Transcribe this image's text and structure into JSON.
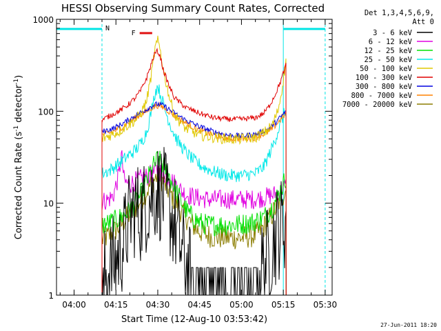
{
  "chart_data": {
    "type": "line",
    "title": "HESSI Observing Summary Count Rates, Corrected",
    "xlabel": "Start Time (12-Aug-10 03:53:42)",
    "ylabel": "Corrected Count Rate (s⁻¹ detector⁻¹)",
    "ylabel_base": "Corrected Count Rate (s",
    "ylabel_mid": " detector",
    "ylabel_end": ")",
    "ylabel_sup": "-1",
    "yscale": "log",
    "ylim": [
      1,
      1000
    ],
    "xlim": [
      "03:53:42",
      "05:32:30"
    ],
    "x_ticks": [
      "04:00",
      "04:15",
      "04:30",
      "04:45",
      "05:00",
      "05:15",
      "05:30"
    ],
    "y_ticks": [
      "1",
      "10",
      "100",
      "1000"
    ],
    "legend_header": [
      "Det 1,3,4,5,6,9,",
      "Att 0"
    ],
    "legend_placement": "right",
    "footer_date": "27-Jun-2011 18:20",
    "markers": {
      "night_label": "N",
      "flare_label": "F"
    },
    "marker_colors": {
      "night": "#00e5e5",
      "flare": "#e01010"
    },
    "night_intervals": [
      [
        "03:53:42",
        "04:10:00"
      ],
      [
        "05:15:00",
        "05:30:00"
      ]
    ],
    "flare_interval": [
      "04:23:30",
      "04:28:00"
    ],
    "series": [
      {
        "name": "3 - 6 keV",
        "color": "#000000",
        "x": [
          "04:10",
          "04:12",
          "04:15",
          "04:18",
          "04:20",
          "04:22",
          "04:24",
          "04:26",
          "04:28",
          "04:30",
          "04:32",
          "04:34",
          "04:36",
          "04:38",
          "04:40",
          "04:42",
          "04:44",
          "04:46",
          "04:48",
          "04:50",
          "04:55",
          "05:00",
          "05:03",
          "05:06",
          "05:08",
          "05:10",
          "05:12",
          "05:14",
          "05:16"
        ],
        "y": [
          1.4,
          1.8,
          2.4,
          4.0,
          7.0,
          9.0,
          7.5,
          10.0,
          12.5,
          14.0,
          12.0,
          9.0,
          6.0,
          3.5,
          2.2,
          1.5,
          1.2,
          1.0,
          1.0,
          1.0,
          1.0,
          1.0,
          1.3,
          1.6,
          2.2,
          3.0,
          4.2,
          5.5,
          6.5
        ]
      },
      {
        "name": "6 - 12 keV",
        "color": "#e000e0",
        "x": [
          "04:10",
          "04:12",
          "04:14",
          "04:16",
          "04:17",
          "04:18",
          "04:20",
          "04:22",
          "04:24",
          "04:26",
          "04:28",
          "04:30",
          "04:32",
          "04:34",
          "04:36",
          "04:38",
          "04:40",
          "04:44",
          "04:48",
          "04:52",
          "04:56",
          "05:00",
          "05:04",
          "05:08",
          "05:12",
          "05:14",
          "05:16"
        ],
        "y": [
          10.5,
          10.8,
          12.0,
          20.0,
          34.0,
          17.0,
          16.0,
          17.5,
          18.5,
          19.5,
          21.0,
          23.0,
          21.0,
          19.0,
          16.5,
          14.0,
          12.5,
          11.5,
          11.0,
          11.0,
          11.0,
          11.0,
          11.0,
          11.5,
          12.5,
          14.0,
          15.5
        ]
      },
      {
        "name": "12 - 25 keV",
        "color": "#00e000",
        "x": [
          "04:10",
          "04:12",
          "04:15",
          "04:18",
          "04:20",
          "04:22",
          "04:24",
          "04:26",
          "04:28",
          "04:30",
          "04:32",
          "04:34",
          "04:36",
          "04:38",
          "04:40",
          "04:42",
          "04:44",
          "04:46",
          "04:48",
          "04:52",
          "04:56",
          "05:00",
          "05:04",
          "05:08",
          "05:11",
          "05:13",
          "05:15",
          "05:16"
        ],
        "y": [
          5.8,
          6.0,
          6.5,
          7.5,
          8.5,
          10.0,
          12.5,
          17.0,
          24.0,
          30.0,
          26.0,
          20.0,
          15.0,
          11.0,
          8.5,
          7.2,
          6.5,
          6.0,
          5.8,
          5.8,
          5.8,
          5.9,
          6.2,
          7.0,
          9.0,
          12.0,
          16.0,
          20.0
        ]
      },
      {
        "name": "25 - 50 keV",
        "color": "#00e8e8",
        "x": [
          "04:10",
          "04:13",
          "04:16",
          "04:19",
          "04:22",
          "04:24",
          "04:26",
          "04:28",
          "04:29",
          "04:30",
          "04:31",
          "04:33",
          "04:35",
          "04:37",
          "04:40",
          "04:43",
          "04:46",
          "04:50",
          "04:55",
          "05:00",
          "05:05",
          "05:08",
          "05:11",
          "05:13",
          "05:15",
          "05:16"
        ],
        "y": [
          21,
          23,
          27,
          32,
          38,
          45,
          60,
          110,
          160,
          190,
          150,
          95,
          65,
          48,
          36,
          29,
          25,
          22,
          20,
          20,
          21,
          25,
          40,
          60,
          90,
          100
        ]
      },
      {
        "name": "50 - 100 keV",
        "color": "#e0c800",
        "x": [
          "04:10",
          "04:13",
          "04:16",
          "04:19",
          "04:22",
          "04:24",
          "04:26",
          "04:28",
          "04:29",
          "04:30",
          "04:31",
          "04:32",
          "04:34",
          "04:36",
          "04:40",
          "04:45",
          "04:50",
          "04:55",
          "05:00",
          "05:05",
          "05:08",
          "05:11",
          "05:13",
          "05:14",
          "05:15",
          "05:16"
        ],
        "y": [
          50,
          55,
          60,
          70,
          80,
          95,
          130,
          280,
          480,
          580,
          450,
          280,
          150,
          90,
          65,
          55,
          52,
          50,
          50,
          52,
          58,
          70,
          100,
          140,
          220,
          350
        ]
      },
      {
        "name": "100 - 300 keV",
        "color": "#e00000",
        "x": [
          "04:10",
          "04:13",
          "04:16",
          "04:19",
          "04:22",
          "04:24",
          "04:26",
          "04:28",
          "04:29",
          "04:30",
          "04:31",
          "04:32",
          "04:34",
          "04:36",
          "04:40",
          "04:45",
          "04:50",
          "04:55",
          "05:00",
          "05:05",
          "05:08",
          "05:10",
          "05:12",
          "05:14",
          "05:16"
        ],
        "y": [
          80,
          90,
          100,
          115,
          140,
          170,
          230,
          350,
          430,
          450,
          380,
          280,
          190,
          140,
          110,
          95,
          85,
          82,
          82,
          85,
          95,
          115,
          150,
          210,
          320
        ]
      },
      {
        "name": "300 - 800 keV",
        "color": "#0000e0",
        "x": [
          "04:10",
          "04:14",
          "04:18",
          "04:22",
          "04:26",
          "04:28",
          "04:30",
          "04:32",
          "04:34",
          "04:36",
          "04:40",
          "04:45",
          "04:50",
          "04:55",
          "05:00",
          "05:05",
          "05:10",
          "05:13",
          "05:16"
        ],
        "y": [
          60,
          65,
          75,
          90,
          105,
          115,
          120,
          115,
          105,
          95,
          80,
          68,
          60,
          55,
          54,
          56,
          65,
          80,
          100
        ]
      },
      {
        "name": "800 - 7000 keV",
        "color": "#ff8000",
        "x": [
          "04:10",
          "04:14",
          "04:18",
          "04:22",
          "04:26",
          "04:28",
          "04:30",
          "04:32",
          "04:34",
          "04:36",
          "04:40",
          "04:45",
          "04:50",
          "04:55",
          "05:00",
          "05:05",
          "05:10",
          "05:13",
          "05:16"
        ],
        "y": [
          55,
          60,
          70,
          85,
          100,
          110,
          116,
          110,
          100,
          90,
          75,
          62,
          55,
          51,
          50,
          52,
          60,
          75,
          95
        ]
      },
      {
        "name": "7000 - 20000 keV",
        "color": "#8b7d00",
        "x": [
          "04:10",
          "04:13",
          "04:16",
          "04:19",
          "04:22",
          "04:25",
          "04:28",
          "04:30",
          "04:32",
          "04:35",
          "04:38",
          "04:41",
          "04:44",
          "04:47",
          "04:50",
          "04:55",
          "05:00",
          "05:05",
          "05:08",
          "05:11",
          "05:14",
          "05:16"
        ],
        "y": [
          4.0,
          4.5,
          5.5,
          7.0,
          9.0,
          12.0,
          17.0,
          20.0,
          17.0,
          12.0,
          8.5,
          6.5,
          5.2,
          4.6,
          4.3,
          4.2,
          4.2,
          4.5,
          5.5,
          7.5,
          11.0,
          14.0
        ]
      }
    ]
  }
}
